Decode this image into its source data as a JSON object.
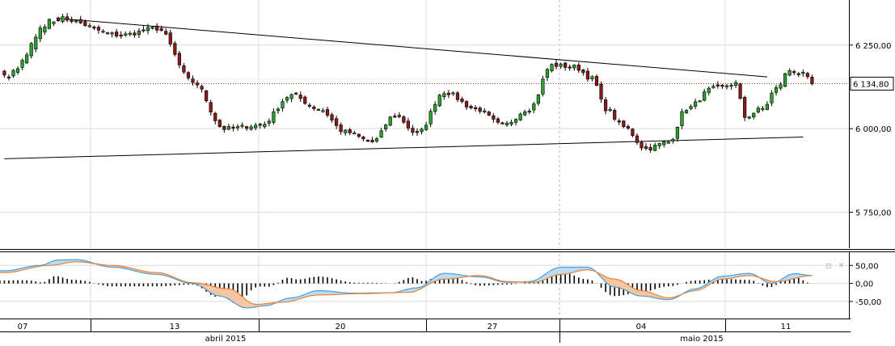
{
  "chart_data": [
    {
      "type": "candlestick",
      "title": "",
      "xlabel": "",
      "ylabel": "",
      "ylim": [
        5640,
        6385
      ],
      "y_ticks": [
        "6 250,00",
        "6 000,00",
        "5 750,00"
      ],
      "y_tick_values": [
        6250,
        6000,
        5750
      ],
      "last_price_label": "6 134,80",
      "last_price": 6134.8,
      "x_tick_labels": [
        "07",
        "13",
        "20",
        "27",
        "04",
        "11"
      ],
      "month_labels": [
        "abril 2015",
        "maio 2015"
      ],
      "grid": true,
      "trendlines": [
        {
          "name": "resistance",
          "from": {
            "bar": 0,
            "value": 6330
          },
          "to": {
            "bar": 158,
            "value": 6155
          }
        },
        {
          "name": "support",
          "from": {
            "bar": -12,
            "value": 5910
          },
          "to": {
            "bar": 166,
            "value": 5975
          }
        }
      ],
      "anchors": [
        {
          "bar": 0,
          "value": 6330
        },
        {
          "bar": 14,
          "value": 6280
        },
        {
          "bar": 22,
          "value": 6300
        },
        {
          "bar": 30,
          "value": 6140
        },
        {
          "bar": 37,
          "value": 6000
        },
        {
          "bar": 45,
          "value": 6010
        },
        {
          "bar": 52,
          "value": 6100
        },
        {
          "bar": 58,
          "value": 6060
        },
        {
          "bar": 64,
          "value": 5990
        },
        {
          "bar": 70,
          "value": 5960
        },
        {
          "bar": 75,
          "value": 6040
        },
        {
          "bar": 80,
          "value": 5985
        },
        {
          "bar": 86,
          "value": 6110
        },
        {
          "bar": 93,
          "value": 6060
        },
        {
          "bar": 99,
          "value": 6010
        },
        {
          "bar": 105,
          "value": 6060
        },
        {
          "bar": 110,
          "value": 6190
        },
        {
          "bar": 115,
          "value": 6185
        },
        {
          "bar": 119,
          "value": 6150
        },
        {
          "bar": 122,
          "value": 6060
        },
        {
          "bar": 126,
          "value": 6005
        },
        {
          "bar": 131,
          "value": 5940
        },
        {
          "bar": 136,
          "value": 5960
        },
        {
          "bar": 140,
          "value": 6060
        },
        {
          "bar": 146,
          "value": 6120
        },
        {
          "bar": 151,
          "value": 6135
        },
        {
          "bar": 153,
          "value": 6035
        },
        {
          "bar": 157,
          "value": 6060
        },
        {
          "bar": 160,
          "value": 6120
        },
        {
          "bar": 163,
          "value": 6175
        },
        {
          "bar": 166,
          "value": 6162
        },
        {
          "bar": 168,
          "value": 6135
        }
      ],
      "bar_count": 169
    },
    {
      "type": "line",
      "title": "",
      "ylim": [
        -95,
        82
      ],
      "y_ticks": [
        "50,00",
        "0,00",
        "-50,00"
      ],
      "y_tick_values": [
        50,
        0,
        -50
      ],
      "series": [
        {
          "name": "",
          "color": "#4a9ede"
        },
        {
          "name": "",
          "color": "#e8813a"
        }
      ],
      "histogram_color": "#000000",
      "fill_colors": [
        "#bcdcf3",
        "#f7c6a2"
      ],
      "fast_anchors": [
        {
          "bar": -12,
          "value": 35
        },
        {
          "bar": -4,
          "value": 50
        },
        {
          "bar": 0,
          "value": 65
        },
        {
          "bar": 4,
          "value": 66
        },
        {
          "bar": 12,
          "value": 45
        },
        {
          "bar": 22,
          "value": 25
        },
        {
          "bar": 30,
          "value": 0
        },
        {
          "bar": 36,
          "value": -35
        },
        {
          "bar": 42,
          "value": -68
        },
        {
          "bar": 46,
          "value": -62
        },
        {
          "bar": 52,
          "value": -40
        },
        {
          "bar": 58,
          "value": -20
        },
        {
          "bar": 66,
          "value": -27
        },
        {
          "bar": 74,
          "value": -26
        },
        {
          "bar": 80,
          "value": -12
        },
        {
          "bar": 86,
          "value": 28
        },
        {
          "bar": 94,
          "value": 18
        },
        {
          "bar": 100,
          "value": 3
        },
        {
          "bar": 105,
          "value": 5
        },
        {
          "bar": 112,
          "value": 45
        },
        {
          "bar": 118,
          "value": 45
        },
        {
          "bar": 124,
          "value": -10
        },
        {
          "bar": 130,
          "value": -35
        },
        {
          "bar": 136,
          "value": -45
        },
        {
          "bar": 142,
          "value": -15
        },
        {
          "bar": 148,
          "value": 20
        },
        {
          "bar": 154,
          "value": 28
        },
        {
          "bar": 159,
          "value": 0
        },
        {
          "bar": 164,
          "value": 27
        },
        {
          "bar": 168,
          "value": 22
        }
      ],
      "slow_anchors": [
        {
          "bar": -12,
          "value": 30
        },
        {
          "bar": -2,
          "value": 50
        },
        {
          "bar": 4,
          "value": 60
        },
        {
          "bar": 12,
          "value": 50
        },
        {
          "bar": 22,
          "value": 30
        },
        {
          "bar": 30,
          "value": 2
        },
        {
          "bar": 38,
          "value": -15
        },
        {
          "bar": 44,
          "value": -58
        },
        {
          "bar": 50,
          "value": -52
        },
        {
          "bar": 58,
          "value": -32
        },
        {
          "bar": 68,
          "value": -28
        },
        {
          "bar": 78,
          "value": -25
        },
        {
          "bar": 86,
          "value": 12
        },
        {
          "bar": 94,
          "value": 22
        },
        {
          "bar": 100,
          "value": 5
        },
        {
          "bar": 106,
          "value": 3
        },
        {
          "bar": 112,
          "value": 25
        },
        {
          "bar": 118,
          "value": 38
        },
        {
          "bar": 124,
          "value": 12
        },
        {
          "bar": 130,
          "value": -20
        },
        {
          "bar": 136,
          "value": -40
        },
        {
          "bar": 142,
          "value": -20
        },
        {
          "bar": 148,
          "value": 12
        },
        {
          "bar": 154,
          "value": 22
        },
        {
          "bar": 160,
          "value": 5
        },
        {
          "bar": 168,
          "value": 22
        }
      ]
    }
  ],
  "controls": {
    "restore_label": "⊡",
    "close_label": "✕"
  }
}
